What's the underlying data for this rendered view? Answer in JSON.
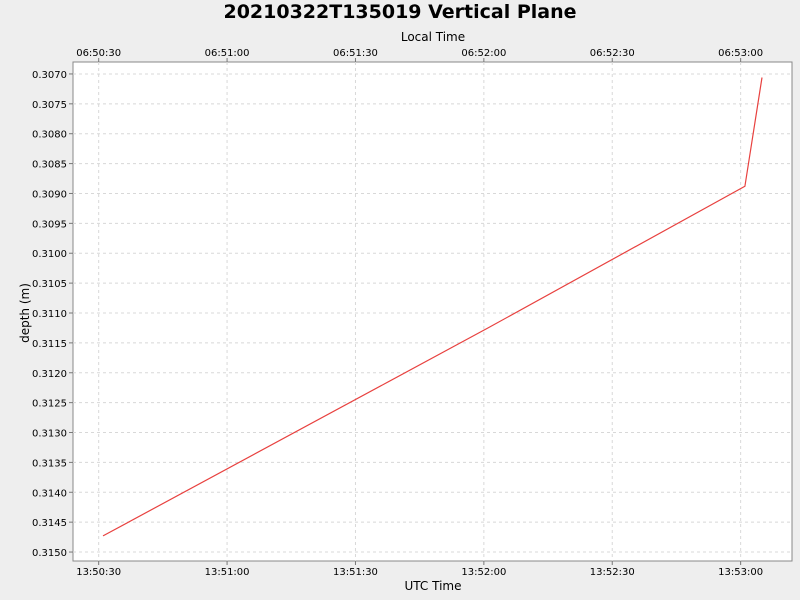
{
  "chart_data": {
    "type": "line",
    "title": "20210322T135019 Vertical Plane",
    "xlabel": "UTC Time",
    "x2label": "Local Time",
    "ylabel": "depth (m)",
    "y_inverted": true,
    "ylim": [
      0.3068,
      0.31515
    ],
    "xlim": [
      "13:50:24",
      "13:53:12"
    ],
    "x_ticks": [
      "13:50:30",
      "13:51:00",
      "13:51:30",
      "13:52:00",
      "13:52:30",
      "13:53:00"
    ],
    "x2_ticks": [
      "06:50:30",
      "06:51:00",
      "06:51:30",
      "06:52:00",
      "06:52:30",
      "06:53:00"
    ],
    "y_ticks": [
      0.307,
      0.3075,
      0.308,
      0.3085,
      0.309,
      0.3095,
      0.31,
      0.3105,
      0.311,
      0.3115,
      0.312,
      0.3125,
      0.313,
      0.3135,
      0.314,
      0.3145,
      0.315
    ],
    "grid": true,
    "series": [
      {
        "color": "#e8413f",
        "x": [
          "13:50:31",
          "13:52:01",
          "13:53:01",
          "13:53:05"
        ],
        "y": [
          0.31473,
          0.31125,
          0.30888,
          0.30706
        ]
      }
    ]
  }
}
